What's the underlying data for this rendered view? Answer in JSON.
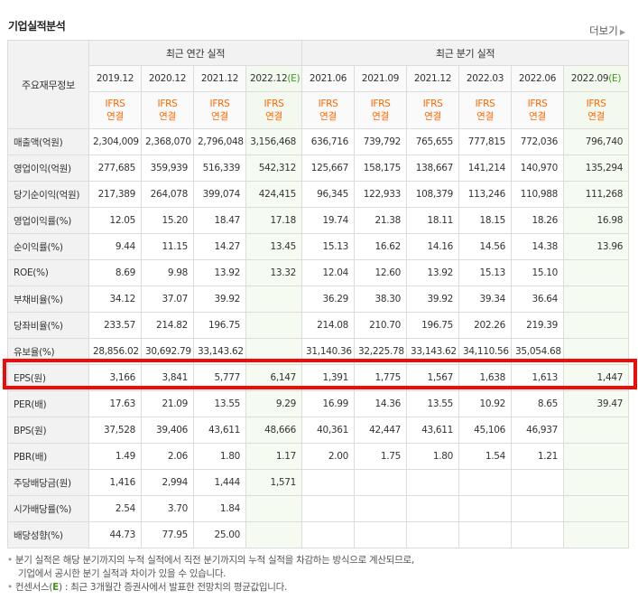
{
  "title": "기업실적분석",
  "more_label": "더보기",
  "header": {
    "row_header": "주요재무정보",
    "annual_group": "최근 연간 실적",
    "quarter_group": "최근 분기 실적",
    "periods": [
      "2019.12",
      "2020.12",
      "2021.12",
      "2022.12",
      "2021.06",
      "2021.09",
      "2021.12",
      "2022.03",
      "2022.06",
      "2022.09"
    ],
    "estimate_mark": "(E)",
    "ifrs_line1": "IFRS",
    "ifrs_line2": "연결"
  },
  "rows": [
    {
      "label": "매출액(억원)",
      "values": [
        "2,304,009",
        "2,368,070",
        "2,796,048",
        "3,156,468",
        "636,716",
        "739,792",
        "765,655",
        "777,815",
        "772,036",
        "796,740"
      ]
    },
    {
      "label": "영업이익(억원)",
      "values": [
        "277,685",
        "359,939",
        "516,339",
        "542,312",
        "125,667",
        "158,175",
        "138,667",
        "141,214",
        "140,970",
        "135,294"
      ]
    },
    {
      "label": "당기순이익(억원)",
      "values": [
        "217,389",
        "264,078",
        "399,074",
        "424,415",
        "96,345",
        "122,933",
        "108,379",
        "113,246",
        "110,988",
        "111,268"
      ]
    },
    {
      "label": "영업이익률(%)",
      "values": [
        "12.05",
        "15.20",
        "18.47",
        "17.18",
        "19.74",
        "21.38",
        "18.11",
        "18.15",
        "18.26",
        "16.98"
      ]
    },
    {
      "label": "순이익률(%)",
      "values": [
        "9.44",
        "11.15",
        "14.27",
        "13.45",
        "15.13",
        "16.62",
        "14.16",
        "14.56",
        "14.38",
        "13.96"
      ]
    },
    {
      "label": "ROE(%)",
      "values": [
        "8.69",
        "9.98",
        "13.92",
        "13.32",
        "12.04",
        "12.60",
        "13.92",
        "15.13",
        "15.10",
        ""
      ]
    },
    {
      "label": "부채비율(%)",
      "values": [
        "34.12",
        "37.07",
        "39.92",
        "",
        "36.29",
        "38.30",
        "39.92",
        "39.34",
        "36.64",
        ""
      ]
    },
    {
      "label": "당좌비율(%)",
      "values": [
        "233.57",
        "214.82",
        "196.75",
        "",
        "214.08",
        "210.70",
        "196.75",
        "202.26",
        "219.39",
        ""
      ]
    },
    {
      "label": "유보율(%)",
      "values": [
        "28,856.02",
        "30,692.79",
        "33,143.62",
        "",
        "31,140.36",
        "32,225.78",
        "33,143.62",
        "34,110.56",
        "35,054.68",
        ""
      ]
    },
    {
      "label": "EPS(원)",
      "values": [
        "3,166",
        "3,841",
        "5,777",
        "6,147",
        "1,391",
        "1,775",
        "1,567",
        "1,638",
        "1,613",
        "1,447"
      ]
    },
    {
      "label": "PER(배)",
      "values": [
        "17.63",
        "21.09",
        "13.55",
        "9.29",
        "16.99",
        "14.36",
        "13.55",
        "10.92",
        "8.65",
        "39.47"
      ]
    },
    {
      "label": "BPS(원)",
      "values": [
        "37,528",
        "39,406",
        "43,611",
        "48,666",
        "40,361",
        "42,447",
        "43,611",
        "45,106",
        "46,937",
        ""
      ]
    },
    {
      "label": "PBR(배)",
      "values": [
        "1.49",
        "2.06",
        "1.80",
        "1.17",
        "2.00",
        "1.75",
        "1.80",
        "1.54",
        "1.21",
        ""
      ]
    },
    {
      "label": "주당배당금(원)",
      "values": [
        "1,416",
        "2,994",
        "1,444",
        "1,571",
        "",
        "",
        "",
        "",
        "",
        ""
      ]
    },
    {
      "label": "시가배당률(%)",
      "values": [
        "2.54",
        "3.70",
        "1.84",
        "",
        "",
        "",
        "",
        "",
        "",
        ""
      ]
    },
    {
      "label": "배당성향(%)",
      "values": [
        "44.73",
        "77.95",
        "25.00",
        "",
        "",
        "",
        "",
        "",
        "",
        ""
      ]
    }
  ],
  "notes": {
    "line1": "분기 실적은 해당 분기까지의 누적 실적에서 직전 분기까지의 누적 실적을 차감하는 방식으로 계산되므로,",
    "line2": "기업에서 공시한 분기 실적과 차이가 있을 수 있습니다.",
    "line3_prefix": "컨센서스(",
    "line3_e": "E",
    "line3_suffix": ") : 최근 3개월간 증권사에서 발표한 전망치의 평균값입니다."
  },
  "colors": {
    "ifrs": "#ff6600",
    "estimate": "#3a9b18",
    "highlight": "#f00a0a"
  }
}
